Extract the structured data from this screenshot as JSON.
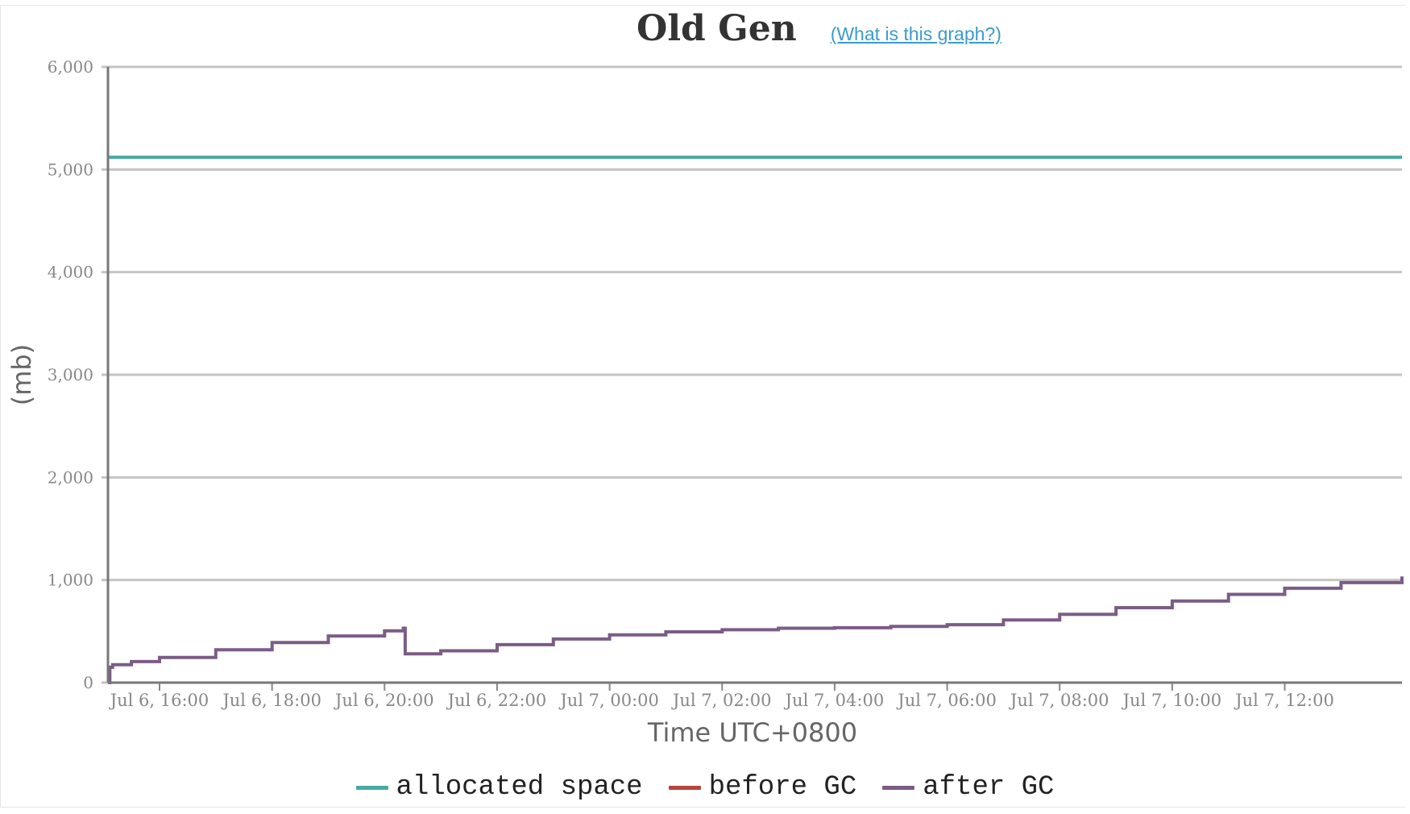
{
  "header": {
    "title": "Old Gen",
    "help_link": "(What is this graph?)"
  },
  "chart_data": {
    "type": "line",
    "title": "Old Gen",
    "xlabel": "Time UTC+0800",
    "ylabel": "(mb)",
    "ylim": [
      0,
      6000
    ],
    "yticks": [
      0,
      1000,
      2000,
      3000,
      4000,
      5000,
      6000
    ],
    "ytick_labels": [
      "0",
      "1,000",
      "2,000",
      "3,000",
      "4,000",
      "5,000",
      "6,000"
    ],
    "xlim": [
      "2023-07-06T15:05",
      "2023-07-07T14:05"
    ],
    "xticks": [
      "2023-07-06T16:00",
      "2023-07-06T18:00",
      "2023-07-06T20:00",
      "2023-07-06T22:00",
      "2023-07-07T00:00",
      "2023-07-07T02:00",
      "2023-07-07T04:00",
      "2023-07-07T06:00",
      "2023-07-07T08:00",
      "2023-07-07T10:00",
      "2023-07-07T12:00"
    ],
    "xtick_labels": [
      "Jul 6, 16:00",
      "Jul 6, 18:00",
      "Jul 6, 20:00",
      "Jul 6, 22:00",
      "Jul 7, 00:00",
      "Jul 7, 02:00",
      "Jul 7, 04:00",
      "Jul 7, 06:00",
      "Jul 7, 08:00",
      "Jul 7, 10:00",
      "Jul 7, 12:00"
    ],
    "grid": true,
    "legend_position": "bottom",
    "series": [
      {
        "name": "allocated space",
        "color": "#4aa9a4",
        "step": true,
        "points": [
          [
            "2023-07-06T15:05",
            5120
          ],
          [
            "2023-07-07T14:05",
            5120
          ]
        ]
      },
      {
        "name": "before GC",
        "color": "#b5453c",
        "step": true,
        "points": []
      },
      {
        "name": "after GC",
        "color": "#7b5c86",
        "step": true,
        "points": [
          [
            "2023-07-06T15:05",
            0
          ],
          [
            "2023-07-06T15:07",
            150
          ],
          [
            "2023-07-06T15:10",
            175
          ],
          [
            "2023-07-06T15:30",
            205
          ],
          [
            "2023-07-06T16:00",
            245
          ],
          [
            "2023-07-06T17:00",
            320
          ],
          [
            "2023-07-06T18:00",
            390
          ],
          [
            "2023-07-06T19:00",
            455
          ],
          [
            "2023-07-06T20:00",
            505
          ],
          [
            "2023-07-06T20:20",
            530
          ],
          [
            "2023-07-06T20:22",
            280
          ],
          [
            "2023-07-06T21:00",
            310
          ],
          [
            "2023-07-06T22:00",
            370
          ],
          [
            "2023-07-06T23:00",
            425
          ],
          [
            "2023-07-07T00:00",
            465
          ],
          [
            "2023-07-07T01:00",
            495
          ],
          [
            "2023-07-07T02:00",
            515
          ],
          [
            "2023-07-07T03:00",
            530
          ],
          [
            "2023-07-07T04:00",
            535
          ],
          [
            "2023-07-07T05:00",
            548
          ],
          [
            "2023-07-07T06:00",
            565
          ],
          [
            "2023-07-07T07:00",
            610
          ],
          [
            "2023-07-07T08:00",
            665
          ],
          [
            "2023-07-07T09:00",
            730
          ],
          [
            "2023-07-07T10:00",
            795
          ],
          [
            "2023-07-07T11:00",
            860
          ],
          [
            "2023-07-07T12:00",
            920
          ],
          [
            "2023-07-07T13:00",
            975
          ],
          [
            "2023-07-07T14:05",
            1035
          ]
        ]
      }
    ]
  }
}
